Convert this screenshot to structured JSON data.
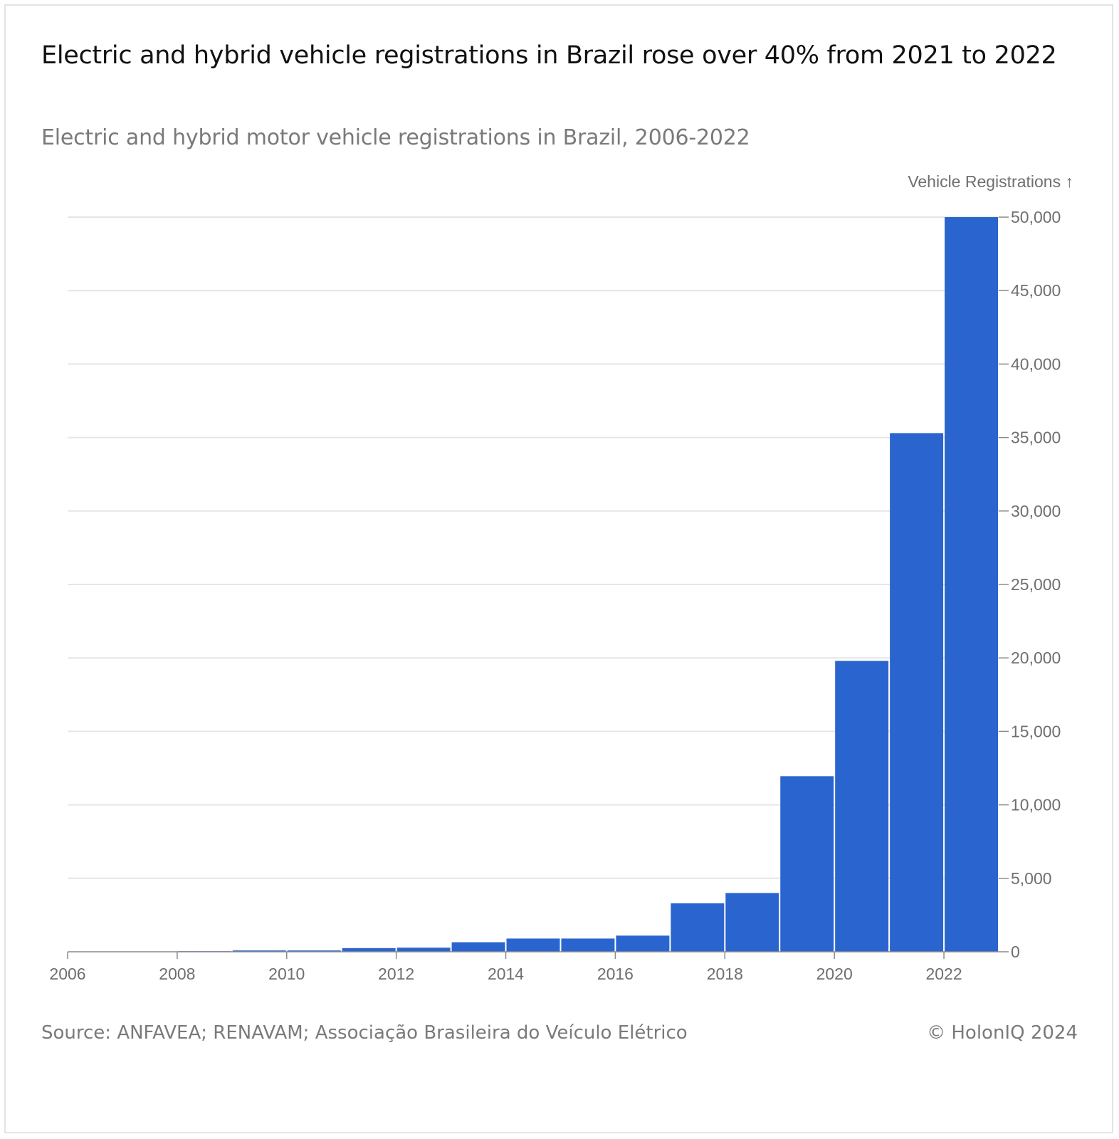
{
  "header": {
    "title": "Electric and hybrid vehicle registrations in Brazil rose over 40% from 2021 to 2022",
    "subtitle": "Electric and hybrid motor vehicle registrations in Brazil, 2006-2022"
  },
  "footer": {
    "source": "Source: ANFAVEA; RENAVAM; Associação Brasileira do Veículo Elétrico",
    "copyright": "© HolonIQ 2024"
  },
  "colors": {
    "bar": "#2a65cf",
    "grid": "#e6e6e6",
    "axis_text": "#6f6f6f"
  },
  "chart_data": {
    "type": "bar",
    "title": "Electric and hybrid vehicle registrations in Brazil rose over 40% from 2021 to 2022",
    "subtitle": "Electric and hybrid motor vehicle registrations in Brazil, 2006-2022",
    "xlabel": "",
    "ylabel": "Vehicle Registrations ↑",
    "categories": [
      "2006",
      "2007",
      "2008",
      "2009",
      "2010",
      "2011",
      "2012",
      "2013",
      "2014",
      "2015",
      "2016",
      "2017",
      "2018",
      "2019",
      "2020",
      "2021",
      "2022"
    ],
    "values": [
      20,
      20,
      40,
      90,
      90,
      250,
      280,
      650,
      900,
      900,
      1100,
      3300,
      4000,
      11950,
      19800,
      35300,
      50000
    ],
    "ylim": [
      0,
      50000
    ],
    "yticks": [
      0,
      5000,
      10000,
      15000,
      20000,
      25000,
      30000,
      35000,
      40000,
      45000,
      50000
    ],
    "ytick_labels": [
      "0",
      "5,000",
      "10,000",
      "15,000",
      "20,000",
      "25,000",
      "30,000",
      "35,000",
      "40,000",
      "45,000",
      "50,000"
    ],
    "xticks": [
      2006,
      2008,
      2010,
      2012,
      2014,
      2016,
      2018,
      2020,
      2022
    ],
    "xtick_labels": [
      "2006",
      "2008",
      "2010",
      "2012",
      "2014",
      "2016",
      "2018",
      "2020",
      "2022"
    ],
    "grid": true,
    "y_axis_side": "right",
    "legend": "none"
  }
}
